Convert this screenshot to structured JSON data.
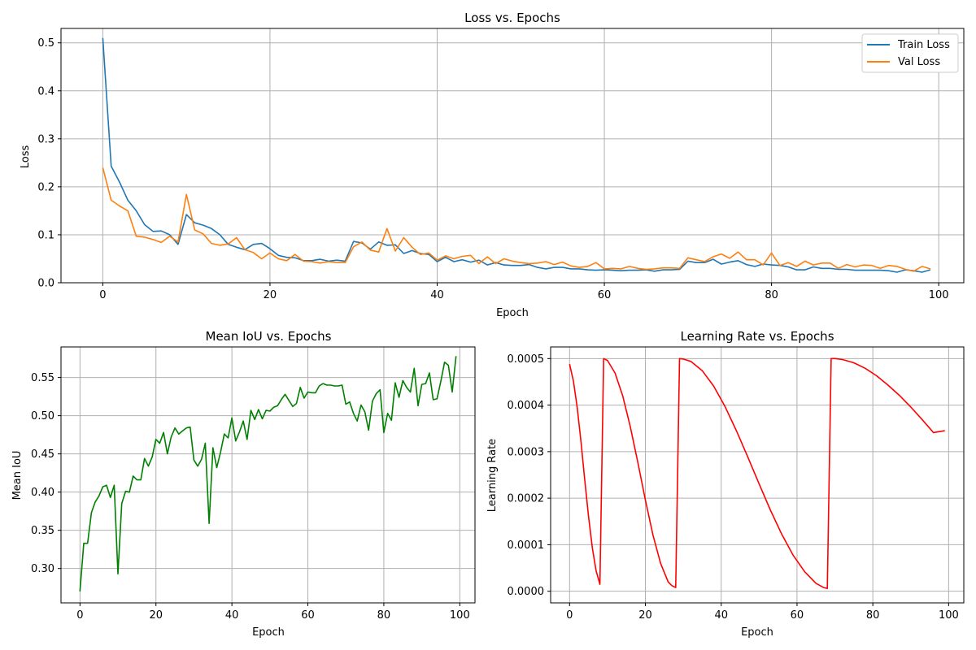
{
  "chart_data": [
    {
      "type": "line",
      "title": "Loss vs. Epochs",
      "xlabel": "Epoch",
      "ylabel": "Loss",
      "xlim": [
        -5,
        103
      ],
      "ylim": [
        0,
        0.53
      ],
      "xticks": [
        0,
        20,
        40,
        60,
        80,
        100
      ],
      "yticks": [
        0.0,
        0.1,
        0.2,
        0.3,
        0.4,
        0.5
      ],
      "ytick_labels": [
        "0.0",
        "0.1",
        "0.2",
        "0.3",
        "0.4",
        "0.5"
      ],
      "grid": true,
      "legend": "top-right",
      "series": [
        {
          "name": "Train Loss",
          "color": "#1f77b4",
          "values": [
            0.51,
            0.243,
            0.21,
            0.172,
            0.15,
            0.121,
            0.107,
            0.108,
            0.1,
            0.08,
            0.142,
            0.125,
            0.12,
            0.113,
            0.1,
            0.08,
            0.074,
            0.069,
            0.08,
            0.082,
            0.071,
            0.057,
            0.053,
            0.052,
            0.046,
            0.046,
            0.049,
            0.045,
            0.047,
            0.045,
            0.086,
            0.083,
            0.07,
            0.085,
            0.078,
            0.079,
            0.061,
            0.067,
            0.061,
            0.059,
            0.044,
            0.053,
            0.044,
            0.048,
            0.043,
            0.047,
            0.037,
            0.042,
            0.037,
            0.036,
            0.036,
            0.038,
            0.032,
            0.029,
            0.032,
            0.032,
            0.029,
            0.029,
            0.027,
            0.026,
            0.027,
            0.026,
            0.025,
            0.026,
            0.026,
            0.027,
            0.024,
            0.027,
            0.027,
            0.028,
            0.045,
            0.042,
            0.042,
            0.049,
            0.039,
            0.043,
            0.046,
            0.038,
            0.034,
            0.039,
            0.037,
            0.036,
            0.033,
            0.027,
            0.027,
            0.033,
            0.03,
            0.03,
            0.028,
            0.028,
            0.026,
            0.026,
            0.026,
            0.026,
            0.025,
            0.022,
            0.027,
            0.025,
            0.022,
            0.027
          ]
        },
        {
          "name": "Val Loss",
          "color": "#ff7f0e",
          "values": [
            0.24,
            0.172,
            0.16,
            0.15,
            0.097,
            0.095,
            0.09,
            0.084,
            0.097,
            0.085,
            0.184,
            0.11,
            0.102,
            0.082,
            0.078,
            0.081,
            0.094,
            0.069,
            0.063,
            0.05,
            0.062,
            0.05,
            0.046,
            0.059,
            0.045,
            0.044,
            0.041,
            0.044,
            0.042,
            0.042,
            0.075,
            0.085,
            0.068,
            0.064,
            0.113,
            0.066,
            0.094,
            0.074,
            0.059,
            0.062,
            0.047,
            0.056,
            0.05,
            0.055,
            0.057,
            0.04,
            0.054,
            0.04,
            0.05,
            0.045,
            0.042,
            0.04,
            0.041,
            0.044,
            0.038,
            0.043,
            0.035,
            0.032,
            0.034,
            0.042,
            0.029,
            0.03,
            0.029,
            0.034,
            0.03,
            0.028,
            0.029,
            0.031,
            0.031,
            0.03,
            0.052,
            0.048,
            0.044,
            0.054,
            0.06,
            0.051,
            0.064,
            0.048,
            0.048,
            0.037,
            0.062,
            0.036,
            0.042,
            0.034,
            0.045,
            0.037,
            0.041,
            0.041,
            0.03,
            0.038,
            0.033,
            0.037,
            0.036,
            0.03,
            0.036,
            0.034,
            0.028,
            0.024,
            0.034,
            0.029
          ]
        }
      ]
    },
    {
      "type": "line",
      "title": "Mean IoU vs. Epochs",
      "xlabel": "Epoch",
      "ylabel": "Mean IoU",
      "xlim": [
        -5,
        104
      ],
      "ylim": [
        0.255,
        0.59
      ],
      "xticks": [
        0,
        20,
        40,
        60,
        80,
        100
      ],
      "yticks": [
        0.3,
        0.35,
        0.4,
        0.45,
        0.5,
        0.55
      ],
      "ytick_labels": [
        "0.30",
        "0.35",
        "0.40",
        "0.45",
        "0.50",
        "0.55"
      ],
      "grid": true,
      "series": [
        {
          "color": "#008000",
          "values": [
            0.27,
            0.333,
            0.333,
            0.373,
            0.387,
            0.395,
            0.407,
            0.409,
            0.393,
            0.409,
            0.293,
            0.385,
            0.401,
            0.4,
            0.421,
            0.416,
            0.416,
            0.444,
            0.434,
            0.446,
            0.469,
            0.464,
            0.478,
            0.45,
            0.472,
            0.484,
            0.476,
            0.48,
            0.484,
            0.485,
            0.442,
            0.434,
            0.443,
            0.464,
            0.359,
            0.458,
            0.432,
            0.452,
            0.476,
            0.471,
            0.497,
            0.467,
            0.479,
            0.493,
            0.469,
            0.507,
            0.495,
            0.508,
            0.496,
            0.507,
            0.506,
            0.511,
            0.513,
            0.521,
            0.528,
            0.52,
            0.512,
            0.516,
            0.537,
            0.523,
            0.531,
            0.53,
            0.53,
            0.539,
            0.542,
            0.54,
            0.54,
            0.539,
            0.539,
            0.54,
            0.515,
            0.518,
            0.503,
            0.493,
            0.514,
            0.505,
            0.481,
            0.519,
            0.529,
            0.534,
            0.478,
            0.503,
            0.494,
            0.543,
            0.524,
            0.546,
            0.537,
            0.531,
            0.562,
            0.513,
            0.541,
            0.542,
            0.556,
            0.521,
            0.522,
            0.545,
            0.57,
            0.566,
            0.531,
            0.578
          ]
        }
      ]
    },
    {
      "type": "line",
      "title": "Learning Rate vs. Epochs",
      "xlabel": "Epoch",
      "ylabel": "Learning Rate",
      "xlim": [
        -5,
        104
      ],
      "ylim": [
        -2.5e-05,
        0.000525
      ],
      "xticks": [
        0,
        20,
        40,
        60,
        80,
        100
      ],
      "yticks": [
        0.0,
        0.0001,
        0.0002,
        0.0003,
        0.0004,
        0.0005
      ],
      "ytick_labels": [
        "0.0000",
        "0.0001",
        "0.0002",
        "0.0003",
        "0.0004",
        "0.0005"
      ],
      "grid": true,
      "series": [
        {
          "color": "#ff0000",
          "x": [
            0,
            1,
            2,
            3,
            4,
            5,
            6,
            7,
            8,
            9,
            10,
            12,
            14,
            16,
            18,
            20,
            22,
            24,
            26,
            27,
            28,
            29,
            30,
            32,
            35,
            38,
            41,
            44,
            47,
            50,
            53,
            56,
            59,
            62,
            65,
            67,
            68,
            69,
            70,
            72,
            75,
            78,
            81,
            84,
            87,
            90,
            93,
            96,
            99
          ],
          "values": [
            0.000488,
            0.000452,
            0.000396,
            0.000322,
            0.00024,
            0.000161,
            9.3e-05,
            4.4e-05,
            1.5e-05,
            0.0005,
            0.000496,
            0.000469,
            0.00042,
            0.000354,
            0.000277,
            0.000196,
            0.000121,
            6e-05,
            2e-05,
            1.2e-05,
            8e-06,
            0.0005,
            0.000499,
            0.000494,
            0.000474,
            0.000441,
            0.000397,
            0.000345,
            0.000289,
            0.000231,
            0.000174,
            0.000122,
            7.7e-05,
            4.2e-05,
            1.7e-05,
            8e-06,
            6e-06,
            0.0005,
            0.0005,
            0.000498,
            0.000491,
            0.000479,
            0.000463,
            0.000443,
            0.000421,
            0.000396,
            0.000369,
            0.000341,
            0.000345
          ]
        }
      ]
    }
  ]
}
